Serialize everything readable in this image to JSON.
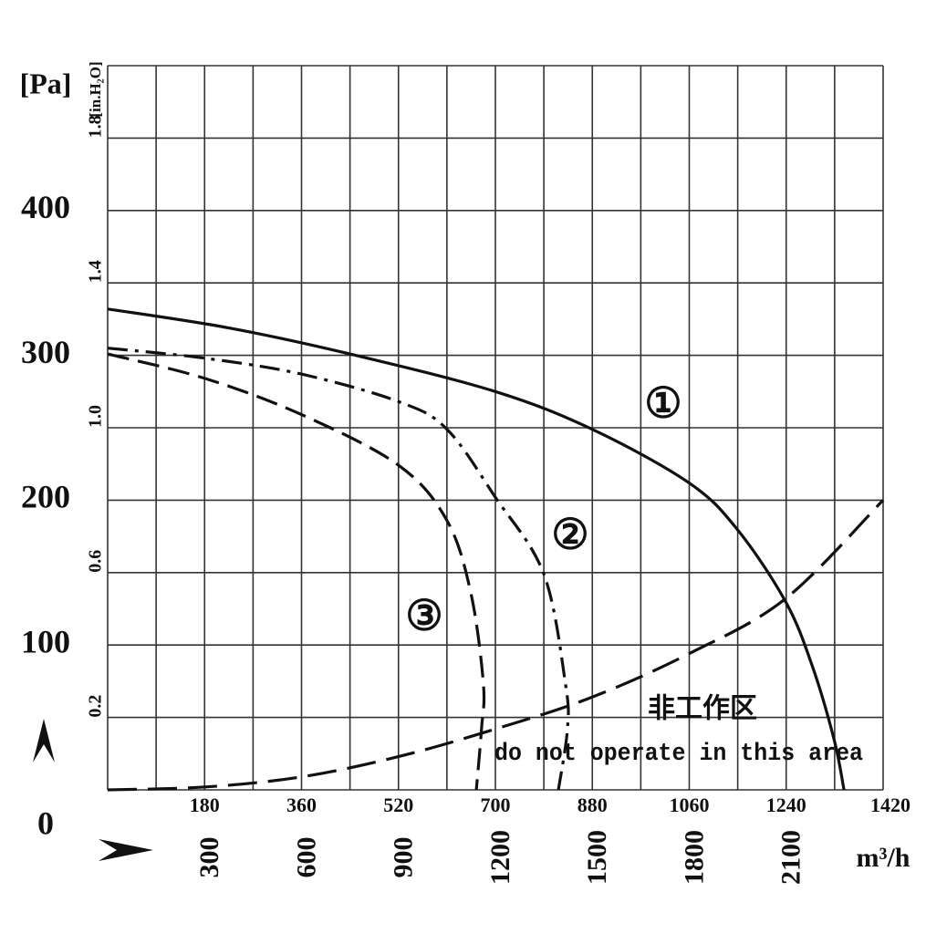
{
  "chart_data": {
    "type": "line",
    "y_unit_label": "[Pa]",
    "y2_unit_label": "[in.H₂O]",
    "x_unit_label": "m³/h",
    "xlim": [
      0,
      2400
    ],
    "xticks": [
      300,
      600,
      900,
      1200,
      1500,
      1800,
      2100
    ],
    "x2ticks": [
      {
        "value": 300,
        "label": "180"
      },
      {
        "value": 600,
        "label": "360"
      },
      {
        "value": 900,
        "label": "520"
      },
      {
        "value": 1200,
        "label": "700"
      },
      {
        "value": 1500,
        "label": "880"
      },
      {
        "value": 1800,
        "label": "1060"
      },
      {
        "value": 2100,
        "label": "1240"
      },
      {
        "value": 2400,
        "label": "1420"
      }
    ],
    "ylim": [
      0,
      500
    ],
    "yticks": [
      0,
      100,
      200,
      300,
      400
    ],
    "y2ticks": [
      {
        "value": 50,
        "label": "0.2"
      },
      {
        "value": 150,
        "label": "0.6"
      },
      {
        "value": 250,
        "label": "1.0"
      },
      {
        "value": 350,
        "label": "1.4"
      },
      {
        "value": 450,
        "label": "1.8"
      }
    ],
    "grid": true,
    "color": "#111111",
    "series": [
      {
        "name": "①",
        "style": "solid",
        "x": [
          0,
          373,
          768,
          1200,
          1499,
          1799,
          1948,
          2098,
          2180,
          2248,
          2279
        ],
        "values": [
          332,
          319,
          300,
          275,
          249,
          212,
          180,
          130,
          86,
          35,
          0
        ]
      },
      {
        "name": "②",
        "style": "dashdot",
        "x": [
          0,
          302,
          601,
          901,
          1050,
          1200,
          1350,
          1417,
          1423,
          1395
        ],
        "values": [
          305,
          298,
          287,
          268,
          249,
          202,
          149,
          73,
          42,
          0
        ]
      },
      {
        "name": "③",
        "style": "dash",
        "x": [
          0,
          302,
          601,
          901,
          1050,
          1124,
          1163,
          1157,
          1141
        ],
        "values": [
          301,
          284,
          259,
          224,
          186,
          136,
          73,
          42,
          0
        ]
      }
    ],
    "boundary": {
      "style": "longdash",
      "x": [
        0,
        302,
        601,
        901,
        1200,
        1499,
        1799,
        2098,
        2400
      ],
      "values": [
        0,
        2,
        9,
        23,
        42,
        64,
        94,
        132,
        200
      ]
    },
    "annotations": [
      "非工作区",
      "do not operate in this area"
    ]
  }
}
